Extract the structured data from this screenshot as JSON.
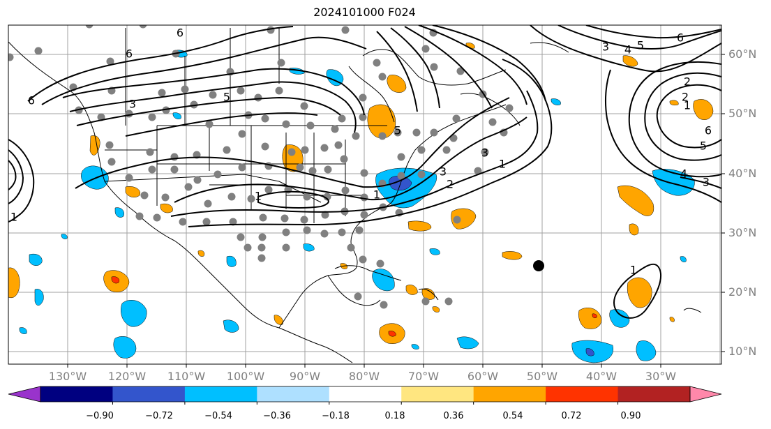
{
  "title": "2024101000 F024",
  "longitude_labels": [
    "130°W",
    "120°W",
    "110°W",
    "100°W",
    "90°W",
    "80°W",
    "70°W",
    "60°W",
    "50°W",
    "40°W",
    "30°W"
  ],
  "latitude_labels": [
    "60°N",
    "50°N",
    "40°N",
    "30°N",
    "20°N",
    "10°N"
  ],
  "colorbar": {
    "colors": [
      "#9933cc",
      "#000080",
      "#3355cc",
      "#00bfff",
      "#aee0ff",
      "#ffffff",
      "#ffe680",
      "#ffa500",
      "#ff3300",
      "#b22222",
      "#ff88aa"
    ],
    "tick_labels": [
      "−0.90",
      "−0.72",
      "−0.54",
      "−0.36",
      "−0.18",
      "0.18",
      "0.36",
      "0.54",
      "0.72",
      "0.90"
    ]
  },
  "contour_labels": [
    "6",
    "6",
    "6",
    "5",
    "3",
    "4",
    "5",
    "6",
    "2",
    "2",
    "1",
    "6",
    "5",
    "4",
    "3",
    "3",
    "5",
    "1",
    "3",
    "3",
    "2",
    "1",
    "1",
    "1",
    "1"
  ],
  "colors": {
    "positive_fill": "#ffa500",
    "positive_strong": "#ff3300",
    "negative_fill": "#00bfff",
    "negative_strong": "#3355cc",
    "station_dot": "#808080",
    "marker": "#000000",
    "grid": "#a0a0a0"
  }
}
